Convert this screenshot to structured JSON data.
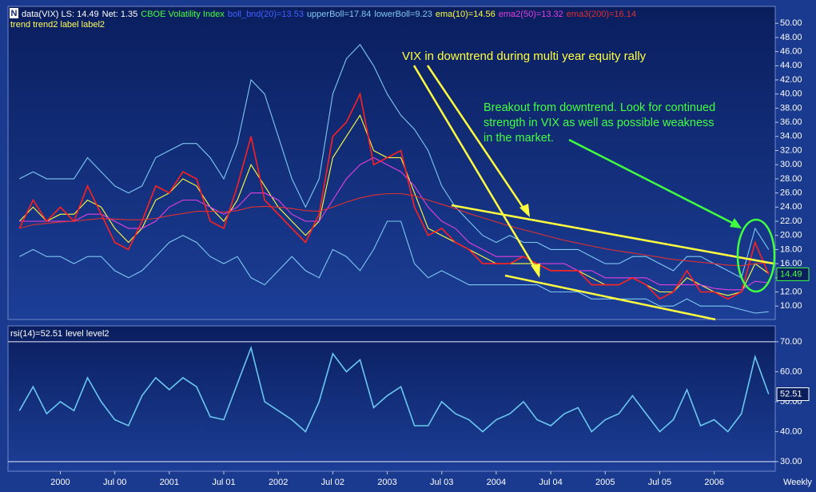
{
  "chart_data": [
    {
      "type": "line",
      "header": [
        {
          "text": "Net: 1.35",
          "color": "#ffffff"
        },
        {
          "text": "CBOE Volatility Index",
          "color": "#40ff40"
        },
        {
          "text": "boll_bnd(20)=13.53",
          "color": "#4060ff"
        }
      ],
      "header2": "trend trend2 label label2",
      "last_label": "14.49",
      "x": [
        1999.625,
        1999.75,
        1999.875,
        2000.0,
        2000.125,
        2000.25,
        2000.375,
        2000.5,
        2000.625,
        2000.75,
        2000.875,
        2001.0,
        2001.125,
        2001.25,
        2001.375,
        2001.5,
        2001.625,
        2001.75,
        2001.875,
        2002.0,
        2002.125,
        2002.25,
        2002.375,
        2002.5,
        2002.625,
        2002.75,
        2002.875,
        2003.0,
        2003.125,
        2003.25,
        2003.375,
        2003.5,
        2003.625,
        2003.75,
        2003.875,
        2004.0,
        2004.125,
        2004.25,
        2004.375,
        2004.5,
        2004.625,
        2004.75,
        2004.875,
        2005.0,
        2005.125,
        2005.25,
        2005.375,
        2005.5,
        2005.625,
        2005.75,
        2005.875,
        2006.0,
        2006.125,
        2006.25,
        2006.375,
        2006.5
      ],
      "series": [
        {
          "name": "data(VIX) LS: 14.49",
          "color": "#ff2020",
          "values": [
            21,
            25,
            22,
            24,
            22,
            27,
            23,
            19,
            18,
            22,
            27,
            26,
            29,
            28,
            22,
            21,
            27,
            34,
            25,
            23,
            21,
            19,
            23,
            34,
            36,
            40,
            30,
            31,
            32,
            24,
            20,
            21,
            19,
            18,
            16,
            16,
            16,
            17,
            16,
            15,
            15,
            15,
            13,
            13,
            13,
            14,
            13,
            11,
            12,
            15,
            12,
            12,
            11,
            12,
            19,
            14.5
          ]
        },
        {
          "name": "upperBoll=17.84",
          "color": "#7ec8f0",
          "values": [
            28,
            29,
            28,
            28,
            28,
            31,
            29,
            27,
            26,
            27,
            31,
            32,
            33,
            33,
            31,
            28,
            33,
            42,
            40,
            34,
            28,
            24,
            28,
            40,
            45,
            47,
            44,
            40,
            37,
            35,
            32,
            27,
            24,
            22,
            20,
            19,
            20,
            19,
            19,
            18,
            18,
            18,
            17,
            16,
            16,
            17,
            17,
            16,
            15,
            17,
            17,
            16,
            15,
            14,
            21,
            18
          ]
        },
        {
          "name": "lowerBoll=9.23",
          "color": "#7ec8f0",
          "values": [
            17,
            18,
            17,
            17,
            16,
            17,
            17,
            15,
            14,
            15,
            17,
            19,
            20,
            19,
            17,
            16,
            17,
            14,
            13,
            15,
            17,
            15,
            14,
            18,
            17,
            15,
            18,
            22,
            22,
            16,
            14,
            15,
            14,
            13,
            13,
            13,
            13,
            13,
            13,
            12,
            12,
            12,
            11,
            11,
            11,
            11,
            11,
            10,
            10,
            11,
            10,
            10,
            10,
            9.5,
            9,
            9.2
          ]
        },
        {
          "name": "ema(10)=14.56",
          "color": "#ffff40",
          "values": [
            22,
            24,
            22,
            23,
            23,
            25,
            24,
            21,
            19,
            21,
            25,
            26,
            28,
            27,
            24,
            22,
            25,
            30,
            27,
            24,
            22,
            20,
            22,
            31,
            34,
            37,
            32,
            31,
            31,
            26,
            21,
            20,
            19,
            18,
            17,
            16,
            16,
            16,
            16,
            15,
            15,
            15,
            14,
            13,
            13,
            14,
            13,
            12,
            12,
            14,
            13,
            12,
            11.5,
            12,
            16,
            14.6
          ]
        },
        {
          "name": "ema2(50)=13.32",
          "color": "#e040e0",
          "values": [
            22,
            22,
            22,
            22,
            22,
            23,
            23,
            22,
            21,
            21,
            22,
            24,
            25,
            25,
            24,
            23,
            24,
            26,
            26,
            25,
            23,
            22,
            22,
            25,
            28,
            30,
            31,
            30,
            29,
            27,
            24,
            22,
            21,
            19,
            18,
            17,
            17,
            17,
            16,
            16,
            16,
            15,
            15,
            14,
            14,
            14,
            14,
            13,
            13,
            13,
            13,
            12.5,
            12.3,
            12.3,
            13.5,
            13.3
          ]
        },
        {
          "name": "ema3(200)=16.14",
          "color": "#e03030",
          "values": [
            21,
            21.5,
            21.7,
            21.9,
            22,
            22.2,
            22.4,
            22.3,
            22.2,
            22.2,
            22.4,
            22.8,
            23.1,
            23.4,
            23.4,
            23.3,
            23.5,
            24,
            24.1,
            24,
            23.8,
            23.5,
            23.4,
            24,
            24.7,
            25.3,
            25.7,
            25.9,
            25.9,
            25.6,
            25,
            24.4,
            23.8,
            23.1,
            22.5,
            21.9,
            21.3,
            20.8,
            20.3,
            19.8,
            19.3,
            18.9,
            18.5,
            18.1,
            17.8,
            17.5,
            17.2,
            16.9,
            16.6,
            16.4,
            16.2,
            16,
            15.8,
            15.7,
            16,
            16.1
          ]
        }
      ],
      "annotations": [
        "VIX  in downtrend during multi year  equity rally",
        "Breakout from downtrend. Look for continued",
        "strength in VIX as well as possible weakness",
        "in the market."
      ],
      "xlim": [
        1999.52,
        2006.56
      ],
      "ylim": [
        8.1,
        52.4
      ],
      "yticks": [
        {
          "value": 10,
          "label": "10.00"
        },
        {
          "value": 12,
          "label": "12.00"
        },
        {
          "value": 14,
          "label": "14.00"
        },
        {
          "value": 16,
          "label": "16.00"
        },
        {
          "value": 18,
          "label": "18.00"
        },
        {
          "value": 20,
          "label": "20.00"
        },
        {
          "value": 22,
          "label": "22.00"
        },
        {
          "value": 24,
          "label": "24.00"
        },
        {
          "value": 26,
          "label": "26.00"
        },
        {
          "value": 28,
          "label": "28.00"
        },
        {
          "value": 30,
          "label": "30.00"
        },
        {
          "value": 32,
          "label": "32.00"
        },
        {
          "value": 34,
          "label": "34.00"
        },
        {
          "value": 36,
          "label": "36.00"
        },
        {
          "value": 38,
          "label": "38.00"
        },
        {
          "value": 40,
          "label": "40.00"
        },
        {
          "value": 42,
          "label": "42.00"
        },
        {
          "value": 44,
          "label": "44.00"
        },
        {
          "value": 46,
          "label": "46.00"
        },
        {
          "value": 48,
          "label": "48.00"
        },
        {
          "value": 50,
          "label": "50.00"
        }
      ]
    },
    {
      "type": "line",
      "header": [
        {
          "text": "level level2",
          "color": "#ffffff"
        }
      ],
      "last_label": "52.51",
      "x": [
        1999.625,
        1999.75,
        1999.875,
        2000.0,
        2000.125,
        2000.25,
        2000.375,
        2000.5,
        2000.625,
        2000.75,
        2000.875,
        2001.0,
        2001.125,
        2001.25,
        2001.375,
        2001.5,
        2001.625,
        2001.75,
        2001.875,
        2002.0,
        2002.125,
        2002.25,
        2002.375,
        2002.5,
        2002.625,
        2002.75,
        2002.875,
        2003.0,
        2003.125,
        2003.25,
        2003.375,
        2003.5,
        2003.625,
        2003.75,
        2003.875,
        2004.0,
        2004.125,
        2004.25,
        2004.375,
        2004.5,
        2004.625,
        2004.75,
        2004.875,
        2005.0,
        2005.125,
        2005.25,
        2005.375,
        2005.5,
        2005.625,
        2005.75,
        2005.875,
        2006.0,
        2006.125,
        2006.25,
        2006.375,
        2006.5
      ],
      "series": [
        {
          "name": "rsi(14)=52.51",
          "color": "#6ac8f0",
          "values": [
            47,
            55,
            46,
            50,
            47,
            58,
            50,
            44,
            42,
            52,
            58,
            54,
            58,
            55,
            45,
            44,
            56,
            68,
            50,
            47,
            44,
            40,
            50,
            66,
            60,
            64,
            48,
            52,
            55,
            42,
            42,
            50,
            46,
            44,
            40,
            44,
            46,
            50,
            44,
            42,
            46,
            48,
            40,
            44,
            46,
            52,
            46,
            40,
            44,
            54,
            42,
            44,
            40,
            46,
            65,
            52.51
          ]
        }
      ],
      "levels": [
        70,
        30
      ],
      "xlim": [
        1999.52,
        2006.56
      ],
      "ylim": [
        26.8,
        75.3
      ],
      "yticks": [
        {
          "value": 30,
          "label": "30.00"
        },
        {
          "value": 40,
          "label": "40.00"
        },
        {
          "value": 50,
          "label": "50.00"
        },
        {
          "value": 60,
          "label": "60.00"
        },
        {
          "value": 70,
          "label": "70.00"
        }
      ],
      "xticks": [
        {
          "value": 2000,
          "label": "2000"
        },
        {
          "value": 2000.5,
          "label": "Jul 00"
        },
        {
          "value": 2001,
          "label": "2001"
        },
        {
          "value": 2001.5,
          "label": "Jul 01"
        },
        {
          "value": 2002,
          "label": "2002"
        },
        {
          "value": 2002.5,
          "label": "Jul 02"
        },
        {
          "value": 2003,
          "label": "2003"
        },
        {
          "value": 2003.5,
          "label": "Jul 03"
        },
        {
          "value": 2004,
          "label": "2004"
        },
        {
          "value": 2004.5,
          "label": "Jul 04"
        },
        {
          "value": 2005,
          "label": "2005"
        },
        {
          "value": 2005.5,
          "label": "Jul 05"
        },
        {
          "value": 2006,
          "label": "2006"
        }
      ],
      "xlabel": "Weekly"
    }
  ]
}
